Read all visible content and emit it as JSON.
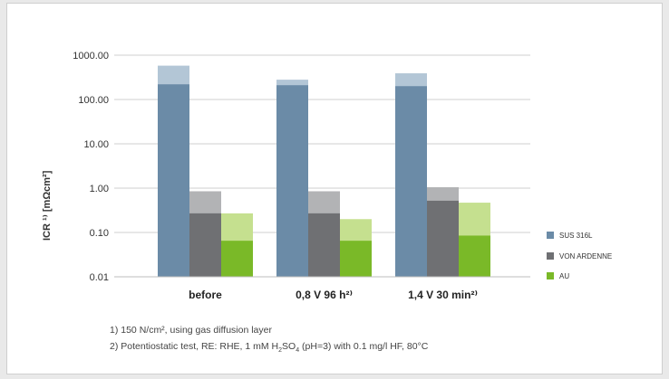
{
  "chart_data": {
    "type": "bar",
    "scale": "log",
    "ylim": [
      0.01,
      1000
    ],
    "yticks": [
      "1000.00",
      "100.00",
      "10.00",
      "1.00",
      "0.10",
      "0.01"
    ],
    "ylabel": "ICR ¹⁾ [mΩcm²]",
    "xlabel": "",
    "categories": [
      "before",
      "0,8 V 96 h²⁾",
      "1,4 V 30 min²⁾"
    ],
    "series": [
      {
        "name": "SUS 316L",
        "color": "#6b8ba7",
        "max_color": "#b3c6d6",
        "values": [
          220,
          210,
          200
        ],
        "max_values": [
          580,
          280,
          390
        ]
      },
      {
        "name": "VON ARDENNE",
        "color": "#6f7073",
        "max_color": "#b2b3b5",
        "values": [
          0.27,
          0.27,
          0.52
        ],
        "max_values": [
          0.85,
          0.85,
          1.05
        ]
      },
      {
        "name": "AU",
        "color": "#7ab928",
        "max_color": "#c5e08f",
        "values": [
          0.065,
          0.065,
          0.085
        ],
        "max_values": [
          0.27,
          0.2,
          0.47
        ]
      }
    ],
    "legend_position": "right",
    "grid": true
  },
  "footnotes": {
    "note1": "1) 150 N/cm², using gas diffusion layer",
    "note2_prefix": "2) Potentiostatic test, RE: RHE, 1 mM H",
    "note2_sub1": "2",
    "note2_mid": "SO",
    "note2_sub2": "4",
    "note2_suffix": " (pH=3) with 0.1 mg/l HF, 80°C"
  }
}
